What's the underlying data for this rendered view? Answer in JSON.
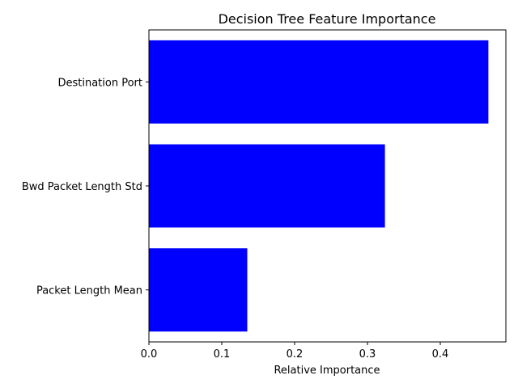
{
  "chart_data": {
    "type": "bar",
    "orientation": "horizontal",
    "title": "Decision Tree Feature Importance",
    "xlabel": "Relative Importance",
    "ylabel": "",
    "categories": [
      "Packet Length Mean",
      "Bwd Packet Length Std",
      "Destination Port"
    ],
    "values": [
      0.135,
      0.324,
      0.466
    ],
    "xlim": [
      0,
      0.49
    ],
    "xticks": [
      0,
      0.1,
      0.2,
      0.3,
      0.4
    ],
    "xtick_labels": [
      "0.0",
      "0.1",
      "0.2",
      "0.3",
      "0.4"
    ],
    "bar_color": "#0000ff",
    "grid": false,
    "legend": "none"
  }
}
